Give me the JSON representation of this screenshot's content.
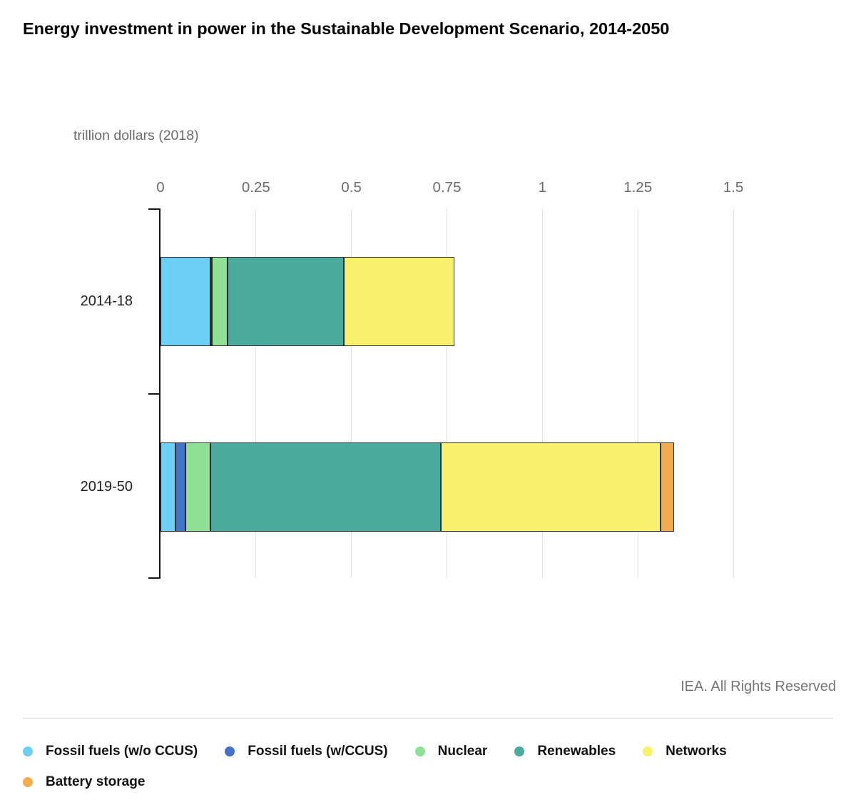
{
  "page": {
    "title": "Energy investment in power in the Sustainable Development Scenario, 2014-2050",
    "source": "IEA. All Rights Reserved"
  },
  "chart_data": {
    "type": "bar",
    "orientation": "horizontal",
    "stacked": true,
    "title": "Energy investment in power in the Sustainable Development Scenario, 2014-2050",
    "unit_label": "trillion dollars (2018)",
    "categories": [
      "2014-18",
      "2019-50"
    ],
    "series": [
      {
        "name": "Fossil fuels (w/o CCUS)",
        "color": "#6ECFF6",
        "values": [
          0.13,
          0.04
        ]
      },
      {
        "name": "Fossil fuels (w/CCUS)",
        "color": "#4472C9",
        "values": [
          0.005,
          0.025
        ]
      },
      {
        "name": "Nuclear",
        "color": "#8FE094",
        "values": [
          0.04,
          0.065
        ]
      },
      {
        "name": "Renewables",
        "color": "#4BAB9F",
        "values": [
          0.305,
          0.605
        ]
      },
      {
        "name": "Networks",
        "color": "#F9F06C",
        "values": [
          0.29,
          0.575
        ]
      },
      {
        "name": "Battery storage",
        "color": "#F3AC4E",
        "values": [
          0,
          0.035
        ]
      }
    ],
    "xlim": [
      0,
      1.5
    ],
    "xticks": [
      0,
      0.25,
      0.5,
      0.75,
      1,
      1.25,
      1.5
    ],
    "xtick_labels": [
      "0",
      "0.25",
      "0.5",
      "0.75",
      "1",
      "1.25",
      "1.5"
    ],
    "grid": true,
    "legend_position": "bottom"
  },
  "colors": {
    "grid": "#e2e2e2",
    "axis": "#161616",
    "segment_border": "#2d2d2d",
    "divider": "#dddddd",
    "tick_text": "#6b6b6b",
    "footer_text": "#757575"
  }
}
